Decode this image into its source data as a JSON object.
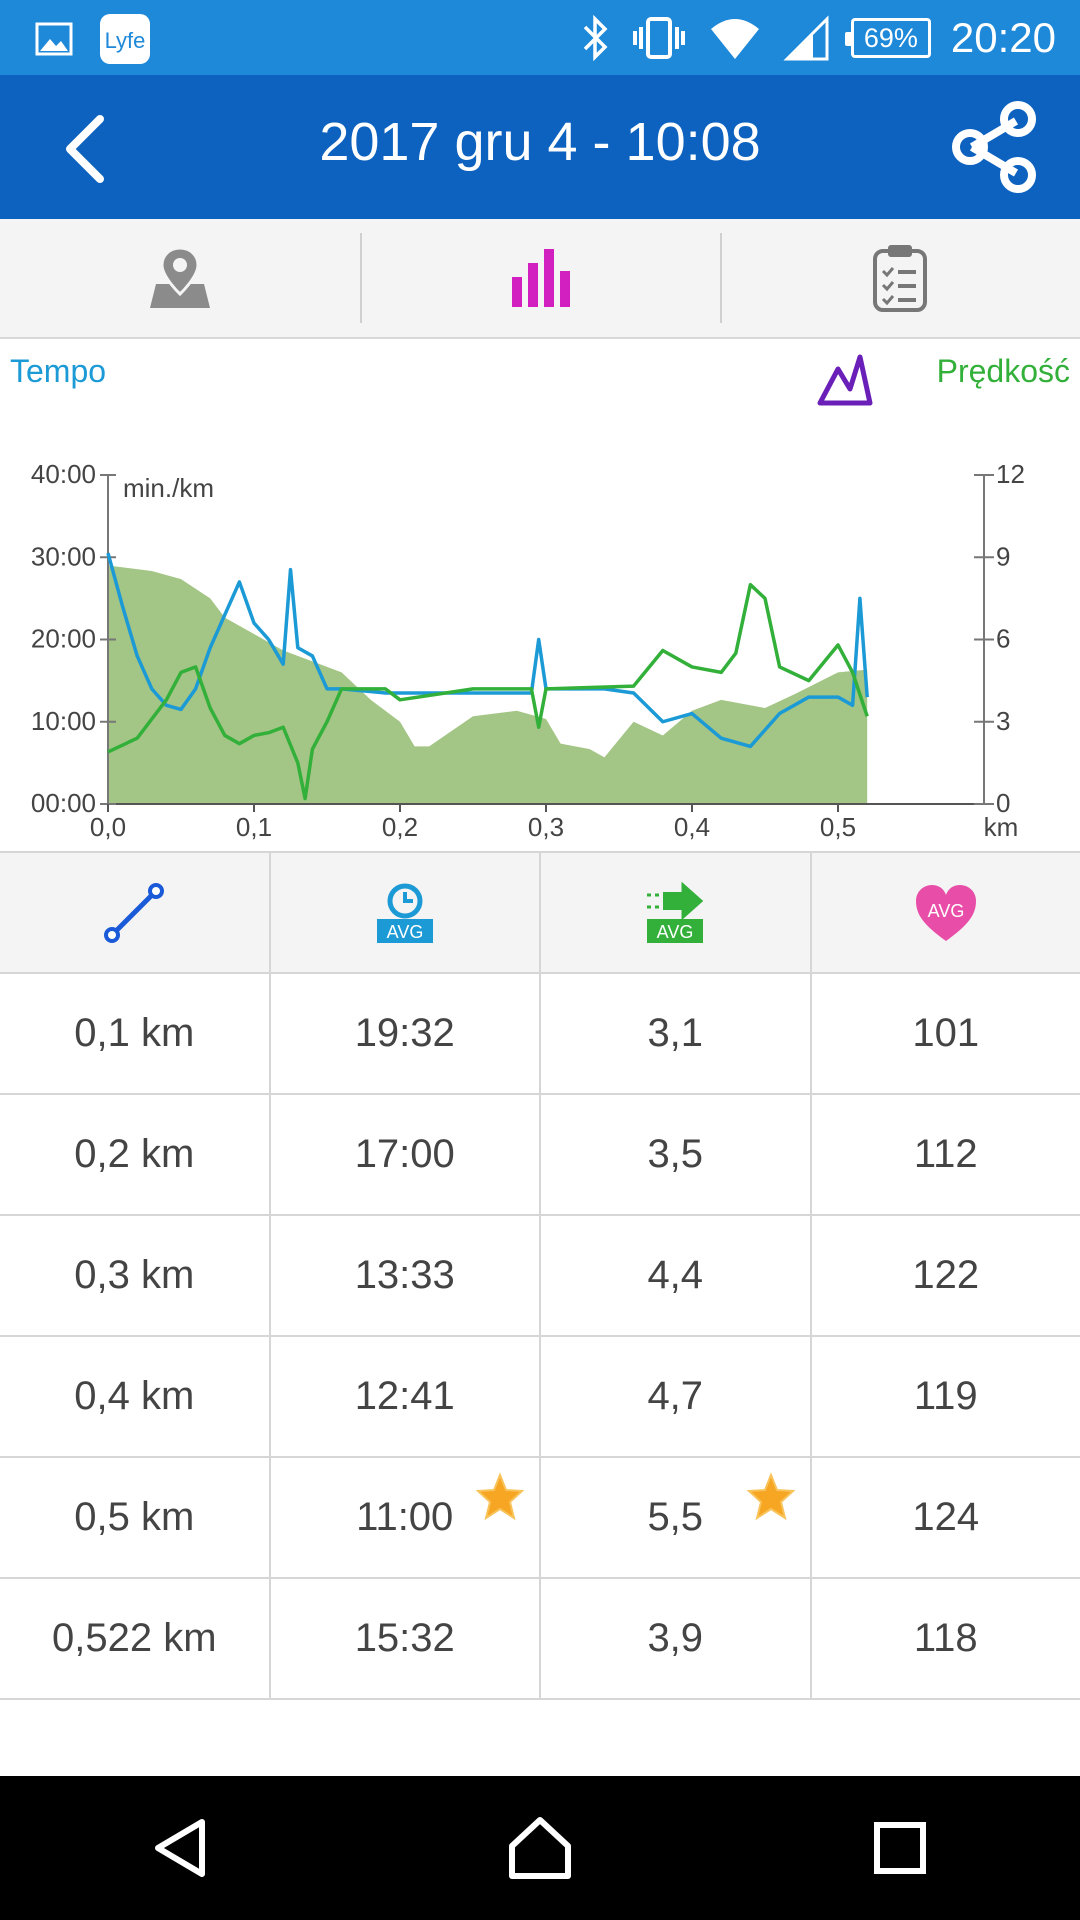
{
  "status_bar": {
    "battery": "69%",
    "time": "20:20"
  },
  "header": {
    "title": "2017 gru 4 - 10:08"
  },
  "tabs": [
    {
      "name": "map",
      "icon": "map-pin-icon"
    },
    {
      "name": "charts",
      "icon": "bar-chart-icon",
      "active": true
    },
    {
      "name": "summary",
      "icon": "clipboard-icon"
    }
  ],
  "chart": {
    "left_label": "Tempo",
    "right_label": "Prędkość",
    "unit_label": "min./km"
  },
  "chart_data": {
    "type": "line",
    "xlabel": "km",
    "ylabel": "min./km",
    "x_ticks": [
      "0,0",
      "0,1",
      "0,2",
      "0,3",
      "0,4",
      "0,5"
    ],
    "y_left_ticks": [
      "00:00",
      "10:00",
      "20:00",
      "30:00",
      "40:00"
    ],
    "y_right_ticks": [
      "0",
      "3",
      "6",
      "9",
      "12"
    ],
    "xlim": [
      0,
      0.6
    ],
    "ylim_left_min": [
      0,
      40
    ],
    "ylim_right": [
      0,
      12
    ],
    "series": [
      {
        "name": "Tempo",
        "axis": "left",
        "color": "#1b9ad6",
        "x": [
          0,
          0.01,
          0.02,
          0.03,
          0.04,
          0.05,
          0.06,
          0.07,
          0.08,
          0.09,
          0.1,
          0.11,
          0.12,
          0.125,
          0.13,
          0.14,
          0.15,
          0.16,
          0.19,
          0.2,
          0.25,
          0.29,
          0.295,
          0.3,
          0.32,
          0.34,
          0.36,
          0.38,
          0.4,
          0.42,
          0.44,
          0.46,
          0.48,
          0.5,
          0.51,
          0.515,
          0.52
        ],
        "y": [
          30.5,
          24,
          18,
          14,
          12,
          11.5,
          14,
          19,
          23,
          27,
          22,
          20,
          17,
          28.5,
          19,
          18,
          14,
          14,
          13.5,
          13.5,
          13.5,
          13.5,
          20,
          14,
          14,
          14,
          13.5,
          10,
          11,
          8,
          7,
          11,
          13,
          13,
          12,
          25,
          13
        ]
      },
      {
        "name": "Prędkość",
        "axis": "right",
        "color": "#33b03a",
        "x": [
          0,
          0.02,
          0.04,
          0.05,
          0.06,
          0.07,
          0.08,
          0.09,
          0.1,
          0.11,
          0.12,
          0.13,
          0.135,
          0.14,
          0.15,
          0.16,
          0.19,
          0.2,
          0.25,
          0.29,
          0.295,
          0.3,
          0.36,
          0.38,
          0.4,
          0.42,
          0.43,
          0.44,
          0.45,
          0.46,
          0.48,
          0.5,
          0.51,
          0.52
        ],
        "y": [
          1.9,
          2.4,
          3.8,
          4.8,
          5.0,
          3.5,
          2.5,
          2.2,
          2.5,
          2.6,
          2.8,
          1.5,
          0.2,
          2.0,
          3.0,
          4.2,
          4.2,
          3.8,
          4.2,
          4.2,
          2.8,
          4.2,
          4.3,
          5.6,
          5.0,
          4.8,
          5.5,
          8.0,
          7.5,
          5.0,
          4.5,
          5.8,
          4.8,
          3.2
        ]
      },
      {
        "name": "Elevation",
        "type": "area",
        "axis": "right",
        "color": "#a3c585",
        "x": [
          0,
          0.03,
          0.05,
          0.07,
          0.08,
          0.1,
          0.12,
          0.14,
          0.16,
          0.18,
          0.2,
          0.21,
          0.22,
          0.25,
          0.28,
          0.3,
          0.31,
          0.33,
          0.34,
          0.36,
          0.38,
          0.4,
          0.42,
          0.45,
          0.47,
          0.5,
          0.52
        ],
        "y": [
          8.7,
          8.5,
          8.2,
          7.5,
          6.8,
          6.2,
          5.6,
          5.2,
          4.8,
          3.8,
          3.0,
          2.1,
          2.1,
          3.2,
          3.4,
          3.1,
          2.2,
          2.0,
          1.7,
          3.0,
          2.5,
          3.4,
          3.8,
          3.5,
          4.0,
          4.8,
          4.9
        ]
      }
    ]
  },
  "splits": {
    "headers": [
      {
        "icon": "distance-icon"
      },
      {
        "icon": "avg-pace-icon",
        "text": "AVG"
      },
      {
        "icon": "avg-speed-icon",
        "text": "AVG"
      },
      {
        "icon": "avg-heart-rate-icon",
        "text": "AVG"
      }
    ],
    "rows": [
      {
        "distance": "0,1 km",
        "pace": "19:32",
        "speed": "3,1",
        "hr": "101",
        "best": false
      },
      {
        "distance": "0,2 km",
        "pace": "17:00",
        "speed": "3,5",
        "hr": "112",
        "best": false
      },
      {
        "distance": "0,3 km",
        "pace": "13:33",
        "speed": "4,4",
        "hr": "122",
        "best": false
      },
      {
        "distance": "0,4 km",
        "pace": "12:41",
        "speed": "4,7",
        "hr": "119",
        "best": false
      },
      {
        "distance": "0,5 km",
        "pace": "11:00",
        "speed": "5,5",
        "hr": "124",
        "best": true
      },
      {
        "distance": "0,522 km",
        "pace": "15:32",
        "speed": "3,9",
        "hr": "118",
        "best": false
      }
    ]
  },
  "colors": {
    "status_bar": "#1e88d9",
    "header": "#0d62bf",
    "tempo": "#1b9ad6",
    "speed": "#33b03a",
    "elevation": "#a3c585",
    "active_tab": "#d21fbf",
    "heart": "#e84ea8"
  }
}
